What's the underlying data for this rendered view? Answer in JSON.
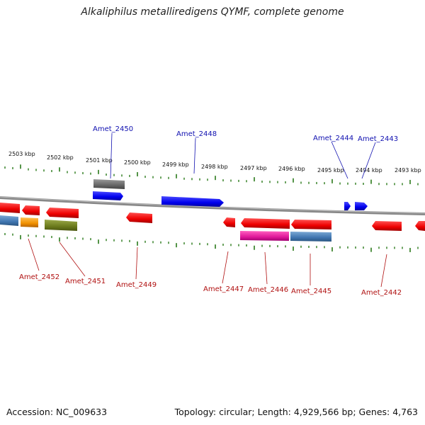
{
  "title": "Alkaliphilus metalliredigens QYMF, complete genome",
  "footer": {
    "accession": "Accession: NC_009633",
    "summary": "Topology: circular; Length: 4,929,566 bp; Genes: 4,763"
  },
  "kbp_ticks": [
    "2503 kbp",
    "2502 kbp",
    "2501 kbp",
    "2500 kbp",
    "2499 kbp",
    "2498 kbp",
    "2497 kbp",
    "2496 kbp",
    "2495 kbp",
    "2494 kbp",
    "2493 kbp"
  ],
  "genes_top": [
    "Amet_2450",
    "Amet_2448",
    "Amet_2444",
    "Amet_2443"
  ],
  "genes_bottom": [
    "Amet_2452",
    "Amet_2451",
    "Amet_2449",
    "Amet_2447",
    "Amet_2446",
    "Amet_2445",
    "Amet_2442"
  ],
  "colors": {
    "forward_gene": "#1010ee",
    "reverse_gene": "#ee1111",
    "backbone": "#888888",
    "tick": "#2a7a1a",
    "top_label": "#1010b0",
    "bottom_label": "#b01010"
  }
}
